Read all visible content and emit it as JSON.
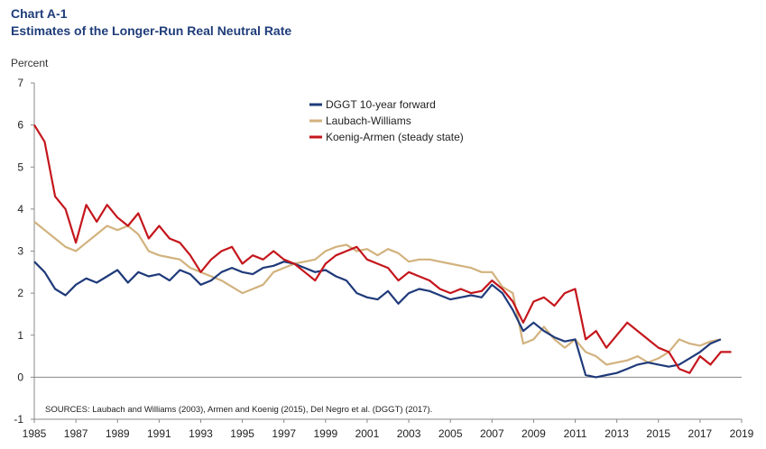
{
  "chart_data": {
    "type": "line",
    "title": "Chart A-1",
    "subtitle": "Estimates of the Longer-Run Real Neutral Rate",
    "ylabel": "Percent",
    "xlabel": "",
    "xlim": [
      1985,
      2019
    ],
    "ylim": [
      -1,
      7
    ],
    "x_ticks": [
      "1985",
      "1987",
      "1989",
      "1991",
      "1993",
      "1995",
      "1997",
      "1999",
      "2001",
      "2003",
      "2005",
      "2007",
      "2009",
      "2011",
      "2013",
      "2015",
      "2017",
      "2019"
    ],
    "y_ticks": [
      "-1",
      "0",
      "1",
      "2",
      "3",
      "4",
      "5",
      "6",
      "7"
    ],
    "grid": false,
    "legend_position": "top-center",
    "note": "SOURCES: Laubach and Williams (2003), Armen and Koenig (2015), Del Negro et al. (DGGT) (2017).",
    "series": [
      {
        "name": "DGGT 10-year forward",
        "color": "#1f3a7a",
        "x": [
          1985,
          1985.5,
          1986,
          1986.5,
          1987,
          1987.5,
          1988,
          1988.5,
          1989,
          1989.5,
          1990,
          1990.5,
          1991,
          1991.5,
          1992,
          1992.5,
          1993,
          1993.5,
          1994,
          1994.5,
          1995,
          1995.5,
          1996,
          1996.5,
          1997,
          1997.5,
          1998,
          1998.5,
          1999,
          1999.5,
          2000,
          2000.5,
          2001,
          2001.5,
          2002,
          2002.5,
          2003,
          2003.5,
          2004,
          2004.5,
          2005,
          2005.5,
          2006,
          2006.5,
          2007,
          2007.5,
          2008,
          2008.5,
          2009,
          2009.5,
          2010,
          2010.5,
          2011,
          2011.5,
          2012,
          2012.5,
          2013,
          2013.5,
          2014,
          2014.5,
          2015,
          2015.5,
          2016,
          2016.5,
          2017,
          2017.5,
          2018
        ],
        "y": [
          2.75,
          2.5,
          2.1,
          1.95,
          2.2,
          2.35,
          2.25,
          2.4,
          2.55,
          2.25,
          2.5,
          2.4,
          2.45,
          2.3,
          2.55,
          2.45,
          2.2,
          2.3,
          2.5,
          2.6,
          2.5,
          2.45,
          2.6,
          2.65,
          2.75,
          2.7,
          2.6,
          2.5,
          2.55,
          2.4,
          2.3,
          2.0,
          1.9,
          1.85,
          2.05,
          1.75,
          2.0,
          2.1,
          2.05,
          1.95,
          1.85,
          1.9,
          1.95,
          1.9,
          2.2,
          2.0,
          1.6,
          1.1,
          1.3,
          1.1,
          0.95,
          0.85,
          0.9,
          0.05,
          0.0,
          0.05,
          0.1,
          0.2,
          0.3,
          0.35,
          0.3,
          0.25,
          0.3,
          0.45,
          0.6,
          0.8,
          0.9
        ]
      },
      {
        "name": "Laubach-Williams",
        "color": "#d2b27e",
        "x": [
          1985,
          1985.5,
          1986,
          1986.5,
          1987,
          1987.5,
          1988,
          1988.5,
          1989,
          1989.5,
          1990,
          1990.5,
          1991,
          1991.5,
          1992,
          1992.5,
          1993,
          1993.5,
          1994,
          1994.5,
          1995,
          1995.5,
          1996,
          1996.5,
          1997,
          1997.5,
          1998,
          1998.5,
          1999,
          1999.5,
          2000,
          2000.5,
          2001,
          2001.5,
          2002,
          2002.5,
          2003,
          2003.5,
          2004,
          2004.5,
          2005,
          2005.5,
          2006,
          2006.5,
          2007,
          2007.5,
          2008,
          2008.5,
          2009,
          2009.5,
          2010,
          2010.5,
          2011,
          2011.5,
          2012,
          2012.5,
          2013,
          2013.5,
          2014,
          2014.5,
          2015,
          2015.5,
          2016,
          2016.5,
          2017,
          2017.5,
          2018
        ],
        "y": [
          3.7,
          3.5,
          3.3,
          3.1,
          3.0,
          3.2,
          3.4,
          3.6,
          3.5,
          3.6,
          3.4,
          3.0,
          2.9,
          2.85,
          2.8,
          2.6,
          2.5,
          2.4,
          2.3,
          2.15,
          2.0,
          2.1,
          2.2,
          2.5,
          2.6,
          2.7,
          2.75,
          2.8,
          3.0,
          3.1,
          3.15,
          3.0,
          3.05,
          2.9,
          3.05,
          2.95,
          2.75,
          2.8,
          2.8,
          2.75,
          2.7,
          2.65,
          2.6,
          2.5,
          2.5,
          2.15,
          2.0,
          0.8,
          0.9,
          1.2,
          0.9,
          0.7,
          0.9,
          0.6,
          0.5,
          0.3,
          0.35,
          0.4,
          0.5,
          0.35,
          0.45,
          0.6,
          0.9,
          0.8,
          0.75,
          0.85,
          0.9
        ]
      },
      {
        "name": "Koenig-Armen (steady state)",
        "color": "#c4161c",
        "x": [
          1985,
          1985.5,
          1986,
          1986.5,
          1987,
          1987.5,
          1988,
          1988.5,
          1989,
          1989.5,
          1990,
          1990.5,
          1991,
          1991.5,
          1992,
          1992.5,
          1993,
          1993.5,
          1994,
          1994.5,
          1995,
          1995.5,
          1996,
          1996.5,
          1997,
          1997.5,
          1998,
          1998.5,
          1999,
          1999.5,
          2000,
          2000.5,
          2001,
          2001.5,
          2002,
          2002.5,
          2003,
          2003.5,
          2004,
          2004.5,
          2005,
          2005.5,
          2006,
          2006.5,
          2007,
          2007.5,
          2008,
          2008.5,
          2009,
          2009.5,
          2010,
          2010.5,
          2011,
          2011.5,
          2012,
          2012.5,
          2013,
          2013.5,
          2014,
          2014.5,
          2015,
          2015.5,
          2016,
          2016.5,
          2017,
          2017.5,
          2018,
          2018.5
        ],
        "y": [
          6.0,
          5.6,
          4.3,
          4.0,
          3.2,
          4.1,
          3.7,
          4.1,
          3.8,
          3.6,
          3.9,
          3.3,
          3.6,
          3.3,
          3.2,
          2.9,
          2.5,
          2.8,
          3.0,
          3.1,
          2.7,
          2.9,
          2.8,
          3.0,
          2.8,
          2.7,
          2.5,
          2.3,
          2.7,
          2.9,
          3.0,
          3.1,
          2.8,
          2.7,
          2.6,
          2.3,
          2.5,
          2.4,
          2.3,
          2.1,
          2.0,
          2.1,
          2.0,
          2.05,
          2.3,
          2.1,
          1.8,
          1.3,
          1.8,
          1.9,
          1.7,
          2.0,
          2.1,
          0.9,
          1.1,
          0.7,
          1.0,
          1.3,
          1.1,
          0.9,
          0.7,
          0.6,
          0.2,
          0.1,
          0.5,
          0.3,
          0.6,
          0.6
        ]
      }
    ]
  }
}
